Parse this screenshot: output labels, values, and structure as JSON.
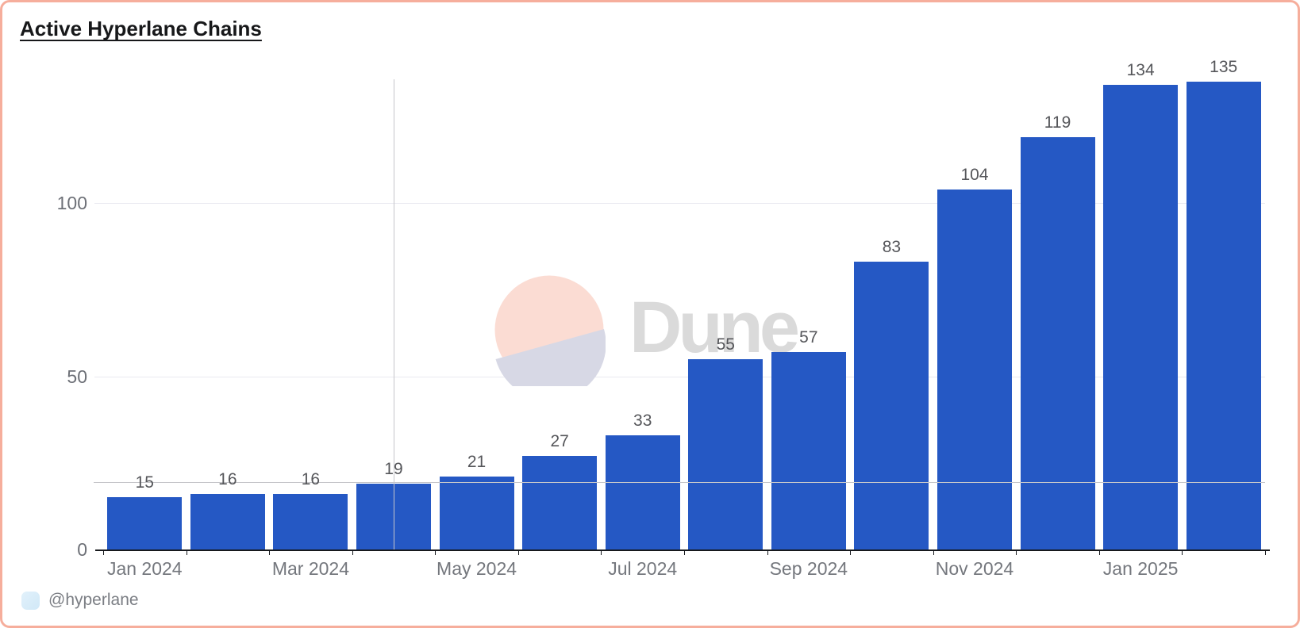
{
  "title": "Active Hyperlane Chains",
  "watermark": {
    "brand": "Dune"
  },
  "footer": {
    "author": "@hyperlane"
  },
  "colors": {
    "bar": "#2558c4",
    "card_border": "#f6ae9c",
    "gridline": "#eaeaf1",
    "crosshair": "#c6c6ca",
    "axis_line": "#17191d",
    "value_label": "#55565a",
    "tick_label": "#74777d",
    "watermark_text": "#dadada",
    "watermark_pink": "#fbdcd3",
    "watermark_lavender": "#d7d8e5",
    "avatar_blue": "#d9edf9"
  },
  "chart_data": {
    "type": "bar",
    "title": "Active Hyperlane Chains",
    "categories": [
      "Jan 2024",
      "Feb 2024",
      "Mar 2024",
      "Apr 2024",
      "May 2024",
      "Jun 2024",
      "Jul 2024",
      "Aug 2024",
      "Sep 2024",
      "Oct 2024",
      "Nov 2024",
      "Dec 2024",
      "Jan 2025",
      "Feb 2025"
    ],
    "values": [
      15,
      16,
      16,
      19,
      21,
      27,
      33,
      55,
      57,
      83,
      104,
      119,
      134,
      135
    ],
    "x_tick_labels": [
      "Jan 2024",
      "Mar 2024",
      "May 2024",
      "Jul 2024",
      "Sep 2024",
      "Nov 2024",
      "Jan 2025"
    ],
    "x_tick_every": 2,
    "y_ticks": [
      0,
      50,
      100
    ],
    "ylim": [
      0,
      136
    ],
    "xlabel": "",
    "ylabel": "",
    "grid": "horizontal",
    "legend_position": "none",
    "data_labels": true,
    "crosshair": {
      "hovered_category": "Apr 2024",
      "hovered_value": 19
    }
  }
}
